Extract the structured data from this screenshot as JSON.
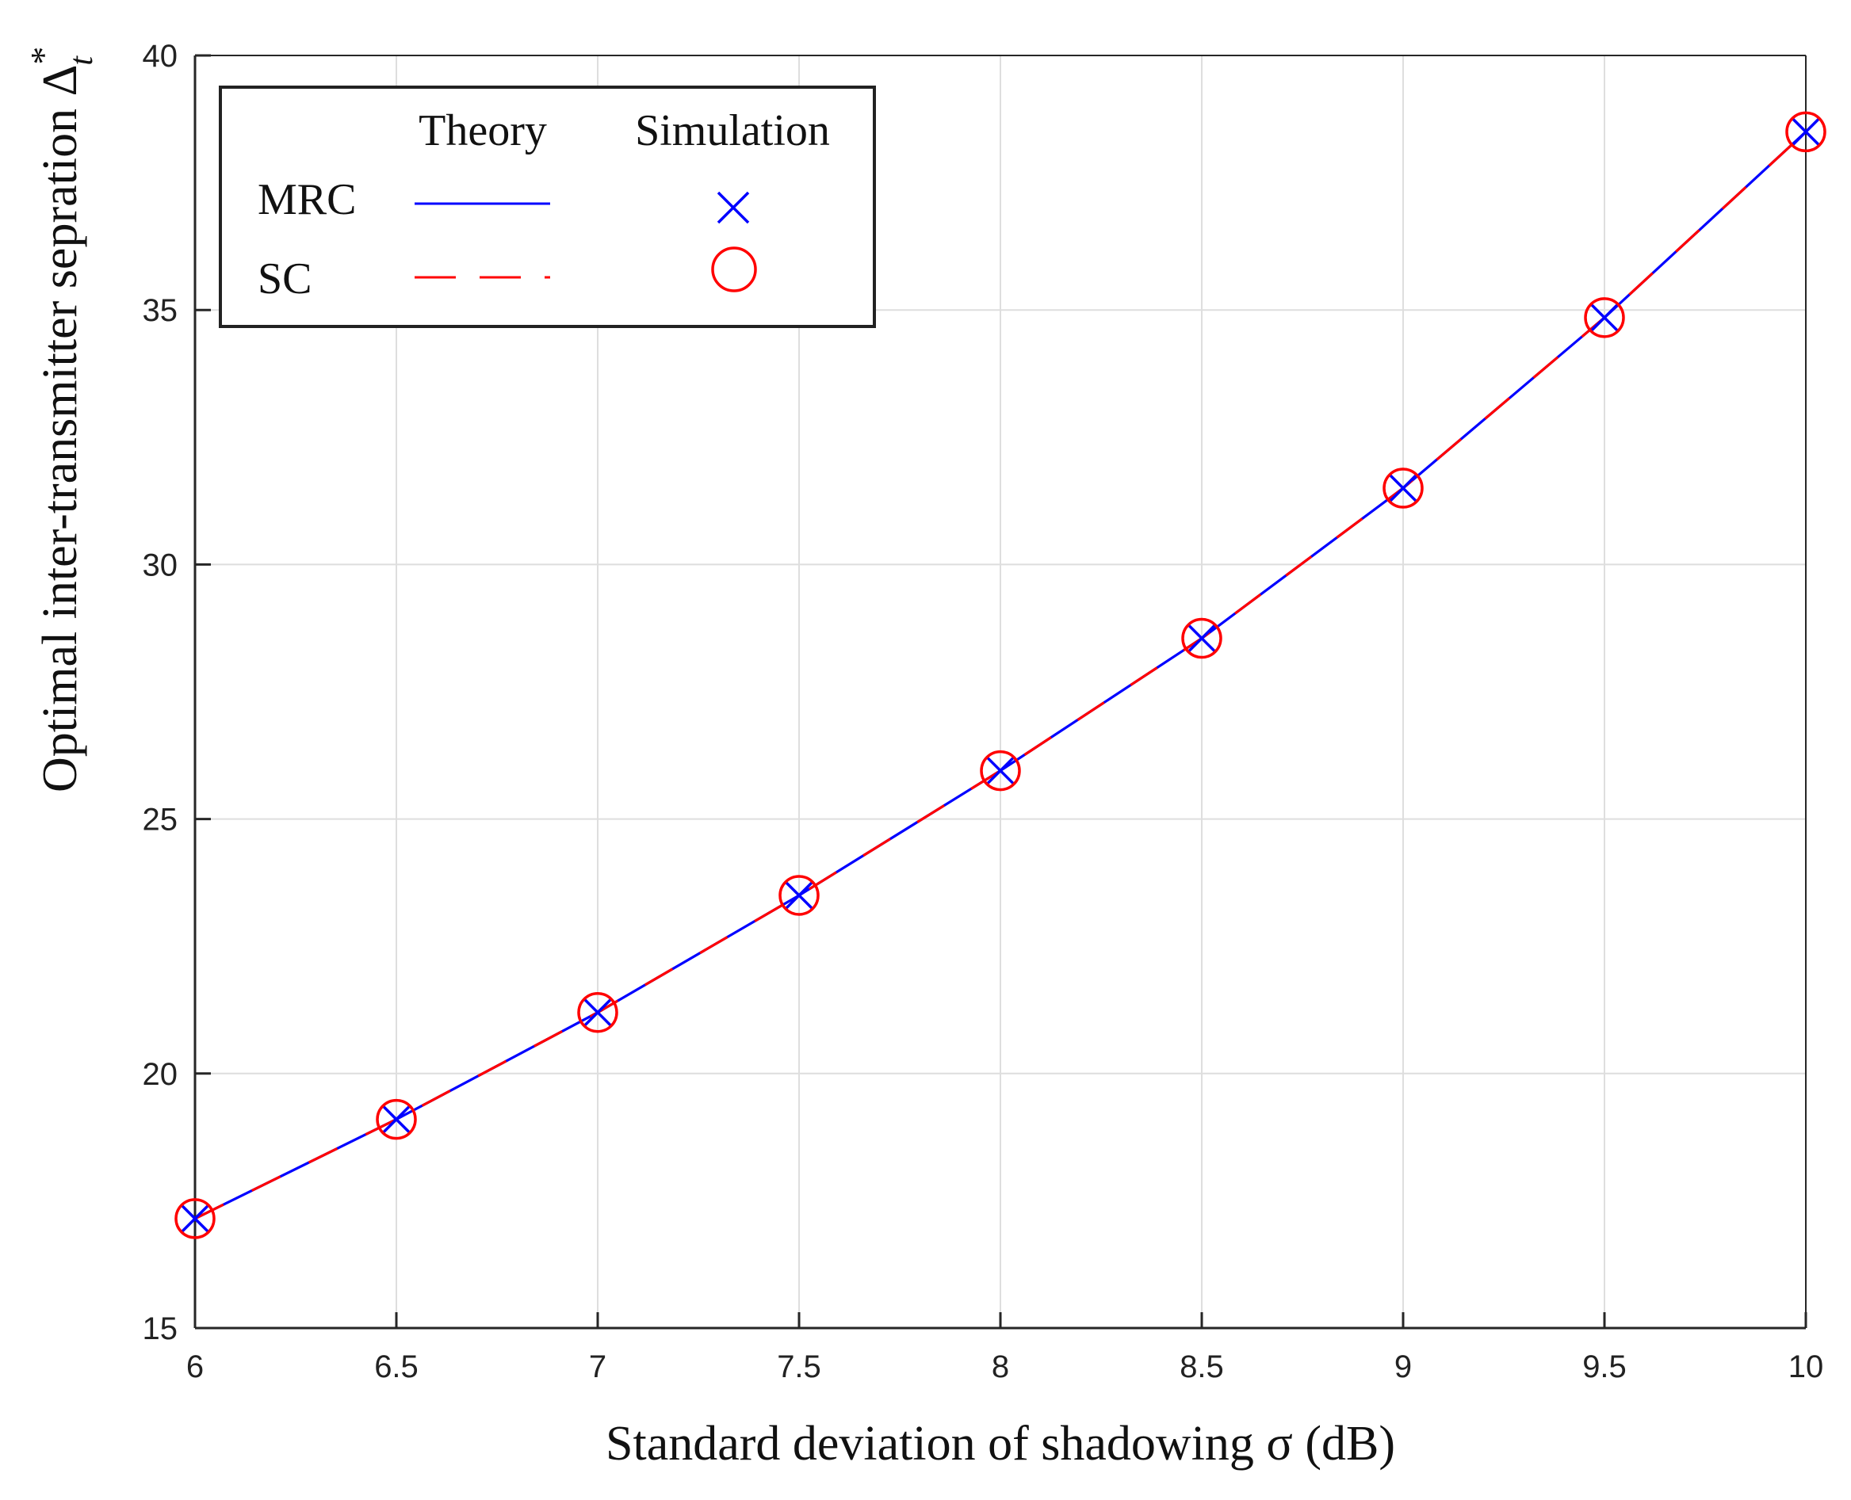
{
  "chart_data": {
    "type": "line",
    "xlabel": "Standard deviation of shadowing σ (dB)",
    "ylabel_main": "Optimal inter-transmitter sepration Δ",
    "ylabel_sup": "*",
    "ylabel_sub": "t",
    "xlim": [
      6,
      10
    ],
    "ylim": [
      15,
      40
    ],
    "xticks": [
      6,
      6.5,
      7,
      7.5,
      8,
      8.5,
      9,
      9.5,
      10
    ],
    "xtick_labels": [
      "6",
      "6.5",
      "7",
      "7.5",
      "8",
      "8.5",
      "9",
      "9.5",
      "10"
    ],
    "yticks": [
      15,
      20,
      25,
      30,
      35,
      40
    ],
    "ytick_labels": [
      "15",
      "20",
      "25",
      "30",
      "35",
      "40"
    ],
    "grid": true,
    "x": [
      6,
      6.5,
      7,
      7.5,
      8,
      8.5,
      9,
      9.5,
      10
    ],
    "series": [
      {
        "name": "MRC Theory",
        "style": "solid",
        "marker": "none",
        "color": "#0000ff",
        "values": [
          17.15,
          19.1,
          21.2,
          23.5,
          25.95,
          28.55,
          31.5,
          34.85,
          38.5
        ]
      },
      {
        "name": "SC Theory",
        "style": "dashed",
        "marker": "none",
        "color": "#ff0000",
        "values": [
          17.15,
          19.1,
          21.2,
          23.5,
          25.95,
          28.55,
          31.5,
          34.85,
          38.5
        ]
      },
      {
        "name": "MRC Simulation",
        "style": "none",
        "marker": "x",
        "color": "#0000ff",
        "values": [
          17.15,
          19.1,
          21.2,
          23.5,
          25.95,
          28.55,
          31.5,
          34.85,
          38.5
        ]
      },
      {
        "name": "SC Simulation",
        "style": "none",
        "marker": "o",
        "color": "#ff0000",
        "values": [
          17.15,
          19.1,
          21.2,
          23.5,
          25.95,
          28.55,
          31.5,
          34.85,
          38.5
        ]
      }
    ],
    "legend": {
      "placement": "top-left",
      "col_theory": "Theory",
      "col_simulation": "Simulation",
      "row_mrc": "MRC",
      "row_sc": "SC"
    }
  }
}
